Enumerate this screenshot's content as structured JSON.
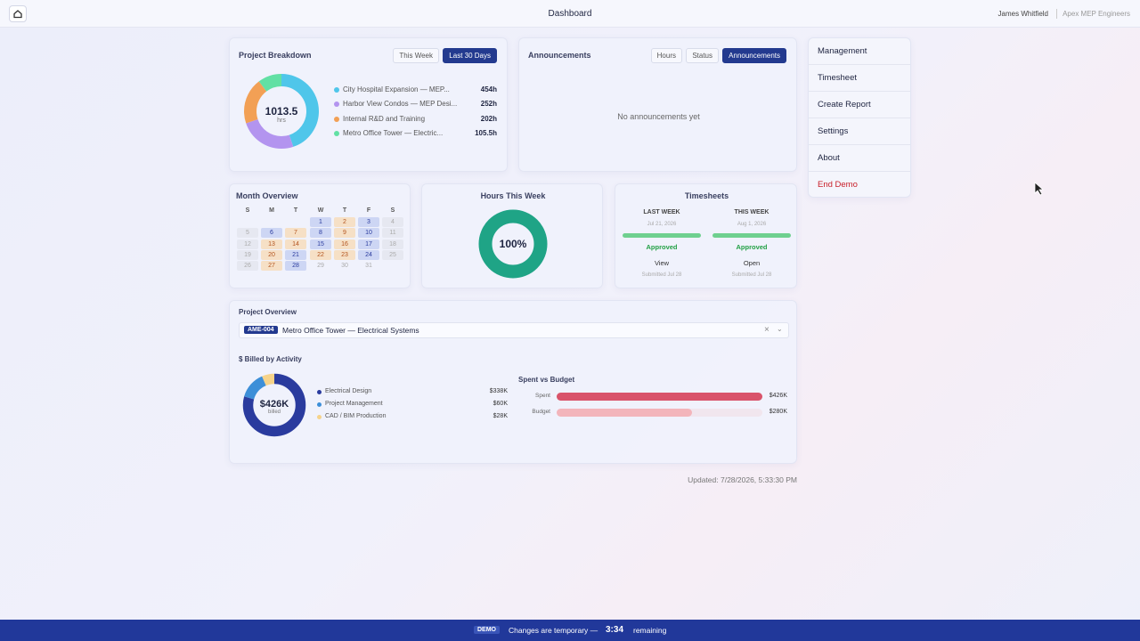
{
  "header": {
    "title": "Dashboard",
    "user": "James Whitfield",
    "company": "Apex MEP Engineers"
  },
  "project_breakdown": {
    "title": "Project Breakdown",
    "tabs": [
      "This Week",
      "Last 30 Days"
    ],
    "active_tab": 1,
    "total": 1013.5,
    "unit": "hrs",
    "projects": [
      {
        "name": "City Hospital Expansion — MEP...",
        "hours": 454,
        "label": "454h",
        "color": "#4fc6ea"
      },
      {
        "name": "Harbor View Condos — MEP Desi...",
        "hours": 252,
        "label": "252h",
        "color": "#b394ef"
      },
      {
        "name": "Internal R&D and Training",
        "hours": 202,
        "label": "202h",
        "color": "#f2a055"
      },
      {
        "name": "Metro Office Tower — Electric...",
        "hours": 105.5,
        "label": "105.5h",
        "color": "#62e0a4"
      }
    ]
  },
  "announcements": {
    "title": "Announcements",
    "tabs": [
      "Hours",
      "Status",
      "Announcements"
    ],
    "active_tab": 2,
    "empty": "No announcements yet"
  },
  "menu": {
    "items": [
      "Management",
      "Timesheet",
      "Create Report",
      "Settings",
      "About",
      "End Demo"
    ]
  },
  "month_overview": {
    "title": "Month Overview",
    "weekdays": [
      "S",
      "M",
      "T",
      "W",
      "T",
      "F",
      "S"
    ],
    "weeks": [
      [
        null,
        null,
        null,
        {
          "day": 1,
          "status": "blue"
        },
        {
          "day": 2,
          "status": "orange"
        },
        {
          "day": 3,
          "status": "blue"
        },
        {
          "day": 4,
          "status": "gray"
        }
      ],
      [
        {
          "day": 5,
          "status": "gray"
        },
        {
          "day": 6,
          "status": "blue"
        },
        {
          "day": 7,
          "status": "orange"
        },
        {
          "day": 8,
          "status": "blue"
        },
        {
          "day": 9,
          "status": "orange"
        },
        {
          "day": 10,
          "status": "blue"
        },
        {
          "day": 11,
          "status": "gray"
        }
      ],
      [
        {
          "day": 12,
          "status": "gray"
        },
        {
          "day": 13,
          "status": "orange"
        },
        {
          "day": 14,
          "status": "orange"
        },
        {
          "day": 15,
          "status": "blue"
        },
        {
          "day": 16,
          "status": "orange"
        },
        {
          "day": 17,
          "status": "blue"
        },
        {
          "day": 18,
          "status": "gray"
        }
      ],
      [
        {
          "day": 19,
          "status": "gray"
        },
        {
          "day": 20,
          "status": "orange"
        },
        {
          "day": 21,
          "status": "blue"
        },
        {
          "day": 22,
          "status": "orange"
        },
        {
          "day": 23,
          "status": "orange"
        },
        {
          "day": 24,
          "status": "blue"
        },
        {
          "day": 25,
          "status": "gray"
        }
      ],
      [
        {
          "day": 26,
          "status": "gray"
        },
        {
          "day": 27,
          "status": "orange"
        },
        {
          "day": 28,
          "status": "blue"
        },
        {
          "day": 29,
          "status": "none"
        },
        {
          "day": 30,
          "status": "none"
        },
        {
          "day": 31,
          "status": "none"
        }
      ]
    ]
  },
  "hours_this_week": {
    "title": "Hours This Week",
    "percent": 100,
    "label": "100%",
    "color": "#1fa486"
  },
  "timesheets": {
    "title": "Timesheets",
    "columns": [
      {
        "label": "LAST WEEK",
        "date": "Jul 21, 2026",
        "status": "Approved",
        "action": "View",
        "submitted": "Submitted Jul 28"
      },
      {
        "label": "THIS WEEK",
        "date": "Aug 1, 2026",
        "status": "Approved",
        "action": "Open",
        "submitted": "Submitted Jul 28"
      }
    ]
  },
  "project_overview": {
    "title": "Project Overview",
    "tag": "AME-004",
    "project": "Metro Office Tower — Electrical Systems",
    "billed_title": "$ Billed by Activity",
    "billed_total": "$426K",
    "billed_caption": "billed",
    "activities": [
      {
        "name": "Electrical Design",
        "value": 338,
        "label": "$338K",
        "color": "#2a3b9e"
      },
      {
        "name": "Project Management",
        "value": 60,
        "label": "$60K",
        "color": "#3d8fd8"
      },
      {
        "name": "CAD / BIM Production",
        "value": 28,
        "label": "$28K",
        "color": "#f6d38a"
      }
    ],
    "spent_vs_budget": {
      "title": "Spent vs Budget",
      "rows": [
        {
          "name": "Spent",
          "value": 426,
          "label": "$426K",
          "color": "#d9536a"
        },
        {
          "name": "Budget",
          "value": 280,
          "label": "$280K",
          "color": "#f3b5bb"
        }
      ]
    }
  },
  "updated": "Updated: 7/28/2026, 5:33:30 PM",
  "footer": {
    "badge": "DEMO",
    "message": "Changes are temporary —",
    "time": "3:34",
    "suffix": "remaining"
  }
}
